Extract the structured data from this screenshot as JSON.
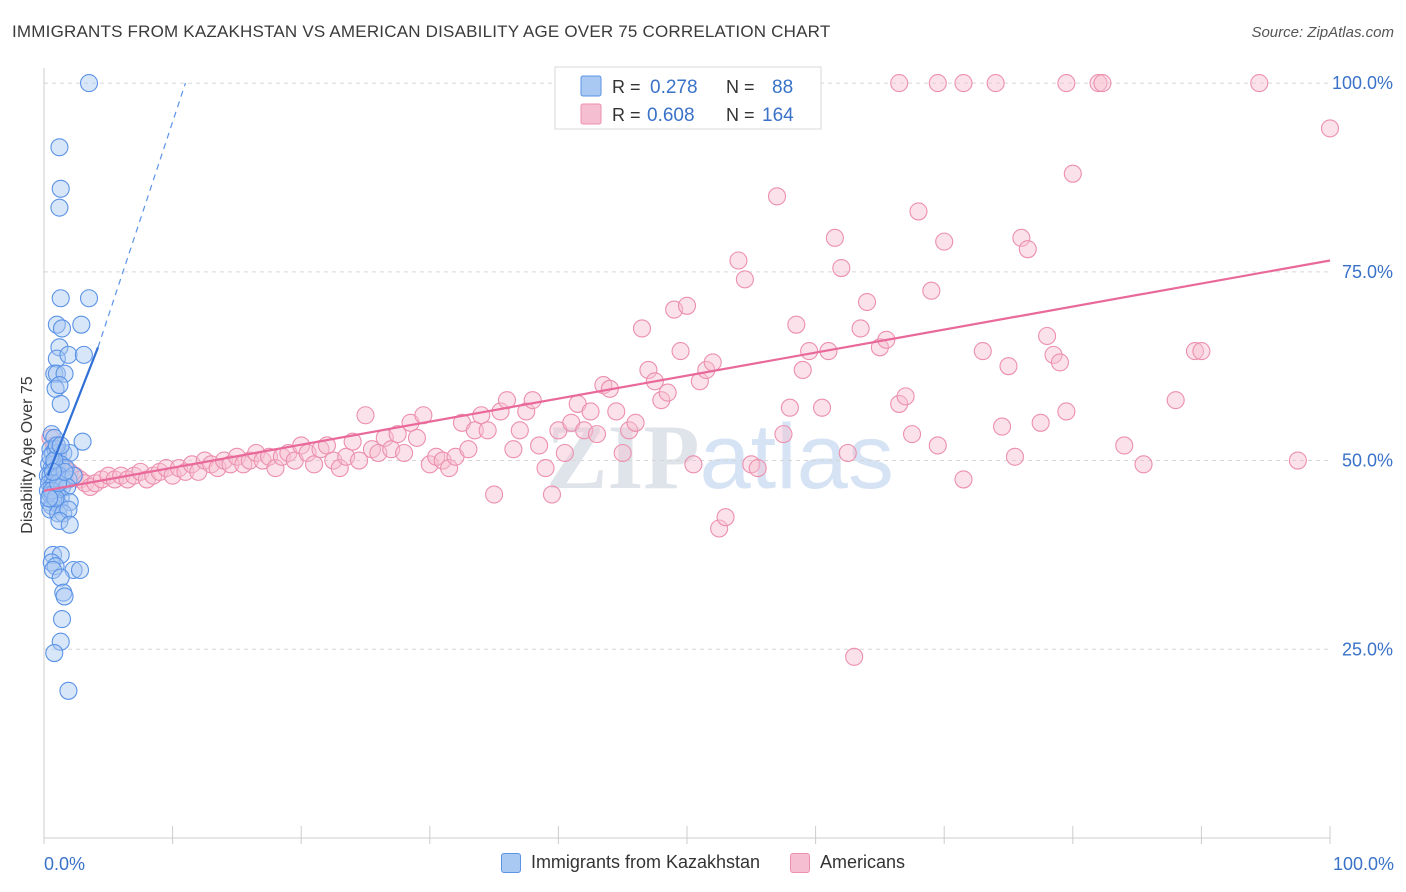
{
  "title": "IMMIGRANTS FROM KAZAKHSTAN VS AMERICAN DISABILITY AGE OVER 75 CORRELATION CHART",
  "source": "Source: ZipAtlas.com",
  "watermark": "ZIPatlas",
  "colors": {
    "blue_fill": "#a9c8f2",
    "blue_stroke": "#5b93e6",
    "blue_line": "#2f6fd6",
    "pink_fill": "#f6bfd1",
    "pink_stroke": "#ec8fae",
    "pink_line": "#e8699a",
    "axis_label": "#3a72c8"
  },
  "chart_data": {
    "type": "scatter",
    "title": "IMMIGRANTS FROM KAZAKHSTAN VS AMERICAN DISABILITY AGE OVER 75 CORRELATION CHART",
    "xlabel": "",
    "ylabel": "Disability Age Over 75",
    "xlim": [
      0,
      100
    ],
    "ylim": [
      0,
      102
    ],
    "x_tick_labels": [
      "0.0%",
      "100.0%"
    ],
    "y_ticks": [
      25,
      50,
      75,
      100
    ],
    "y_tick_labels": [
      "25.0%",
      "50.0%",
      "75.0%",
      "100.0%"
    ],
    "grid": true,
    "legend": {
      "position": "top-center",
      "entries": [
        {
          "series": "Immigrants from Kazakhstan",
          "r_label": "R =",
          "r_value": "0.278",
          "n_label": "N =",
          "n_value": "88"
        },
        {
          "series": "Americans",
          "r_label": "R =",
          "r_value": "0.608",
          "n_label": "N =",
          "n_value": "164"
        }
      ]
    },
    "series": [
      {
        "name": "Immigrants from Kazakhstan",
        "color": "blue",
        "trend": {
          "x": [
            0.3,
            4.2
          ],
          "y": [
            48,
            65
          ]
        },
        "trend_extension": {
          "x": [
            4.2,
            11
          ],
          "y": [
            65,
            100
          ]
        },
        "points": [
          [
            3.5,
            100
          ],
          [
            1.2,
            91.5
          ],
          [
            1.3,
            86
          ],
          [
            1.2,
            83.5
          ],
          [
            1.3,
            71.5
          ],
          [
            3.5,
            71.5
          ],
          [
            1.0,
            68
          ],
          [
            1.4,
            67.5
          ],
          [
            2.9,
            68
          ],
          [
            1.2,
            65
          ],
          [
            1.0,
            63.5
          ],
          [
            1.9,
            64
          ],
          [
            3.1,
            64
          ],
          [
            0.8,
            61.5
          ],
          [
            1.0,
            61.5
          ],
          [
            1.6,
            61.5
          ],
          [
            0.9,
            59.5
          ],
          [
            1.2,
            60
          ],
          [
            1.3,
            57.5
          ],
          [
            0.6,
            53.5
          ],
          [
            0.8,
            53
          ],
          [
            3.0,
            52.5
          ],
          [
            0.5,
            51.5
          ],
          [
            0.7,
            51
          ],
          [
            0.9,
            51.5
          ],
          [
            1.1,
            51
          ],
          [
            1.5,
            51
          ],
          [
            2.0,
            51
          ],
          [
            0.4,
            49.5
          ],
          [
            0.6,
            49
          ],
          [
            0.8,
            49.5
          ],
          [
            1.0,
            49
          ],
          [
            1.3,
            49.5
          ],
          [
            1.7,
            49
          ],
          [
            0.3,
            48
          ],
          [
            0.5,
            48
          ],
          [
            0.7,
            47.5
          ],
          [
            0.9,
            48
          ],
          [
            1.2,
            48
          ],
          [
            1.5,
            47.5
          ],
          [
            1.9,
            47.5
          ],
          [
            2.3,
            48
          ],
          [
            0.4,
            47
          ],
          [
            0.6,
            46.5
          ],
          [
            0.8,
            47
          ],
          [
            1.1,
            46.5
          ],
          [
            1.4,
            46.5
          ],
          [
            1.8,
            46.5
          ],
          [
            0.3,
            46
          ],
          [
            0.5,
            45.5
          ],
          [
            0.7,
            45.5
          ],
          [
            1.0,
            45.5
          ],
          [
            1.3,
            45
          ],
          [
            0.4,
            44.5
          ],
          [
            0.6,
            44
          ],
          [
            0.9,
            44.5
          ],
          [
            1.2,
            44
          ],
          [
            2.0,
            44.5
          ],
          [
            0.5,
            43.5
          ],
          [
            1.1,
            43
          ],
          [
            1.5,
            43
          ],
          [
            1.9,
            43.5
          ],
          [
            1.2,
            42
          ],
          [
            2.0,
            41.5
          ],
          [
            0.7,
            37.5
          ],
          [
            1.3,
            37.5
          ],
          [
            0.6,
            36.5
          ],
          [
            0.9,
            36
          ],
          [
            0.7,
            35.5
          ],
          [
            2.3,
            35.5
          ],
          [
            2.8,
            35.5
          ],
          [
            1.3,
            34.5
          ],
          [
            1.5,
            32.5
          ],
          [
            1.6,
            32
          ],
          [
            1.4,
            29
          ],
          [
            1.3,
            26
          ],
          [
            0.8,
            24.5
          ],
          [
            1.9,
            19.5
          ],
          [
            0.5,
            50.5
          ],
          [
            0.8,
            50
          ],
          [
            1.0,
            52
          ],
          [
            1.3,
            52
          ],
          [
            0.6,
            46
          ],
          [
            0.9,
            45
          ],
          [
            1.1,
            47
          ],
          [
            1.6,
            48.5
          ],
          [
            0.4,
            45
          ],
          [
            0.7,
            48.5
          ]
        ]
      },
      {
        "name": "Americans",
        "color": "pink",
        "trend": {
          "x": [
            0,
            100
          ],
          "y": [
            46,
            76.5
          ]
        },
        "points": [
          [
            0.5,
            53
          ],
          [
            0.8,
            52
          ],
          [
            1.0,
            50.5
          ],
          [
            1.3,
            49.5
          ],
          [
            1.6,
            49
          ],
          [
            2.0,
            48.5
          ],
          [
            2.4,
            48
          ],
          [
            2.8,
            47.5
          ],
          [
            3.2,
            47
          ],
          [
            3.6,
            46.5
          ],
          [
            4.0,
            47
          ],
          [
            4.5,
            47.5
          ],
          [
            5.0,
            48
          ],
          [
            5.5,
            47.5
          ],
          [
            6.0,
            48
          ],
          [
            6.5,
            47.5
          ],
          [
            7.0,
            48
          ],
          [
            7.5,
            48.5
          ],
          [
            8.0,
            47.5
          ],
          [
            8.5,
            48
          ],
          [
            9.0,
            48.5
          ],
          [
            9.5,
            49
          ],
          [
            10.0,
            48
          ],
          [
            10.5,
            49
          ],
          [
            11.0,
            48.5
          ],
          [
            11.5,
            49.5
          ],
          [
            12.0,
            48.5
          ],
          [
            12.5,
            50
          ],
          [
            13.0,
            49.5
          ],
          [
            13.5,
            49
          ],
          [
            14.0,
            50
          ],
          [
            14.5,
            49.5
          ],
          [
            15.0,
            50.5
          ],
          [
            15.5,
            49.5
          ],
          [
            16.0,
            50
          ],
          [
            16.5,
            51
          ],
          [
            17.0,
            50
          ],
          [
            17.5,
            50.5
          ],
          [
            18.0,
            49
          ],
          [
            18.5,
            50.5
          ],
          [
            19.0,
            51
          ],
          [
            19.5,
            50
          ],
          [
            20.0,
            52
          ],
          [
            20.5,
            51
          ],
          [
            21.0,
            49.5
          ],
          [
            21.5,
            51.5
          ],
          [
            22.0,
            52
          ],
          [
            22.5,
            50
          ],
          [
            23.0,
            49
          ],
          [
            23.5,
            50.5
          ],
          [
            24.0,
            52.5
          ],
          [
            24.5,
            50
          ],
          [
            25.0,
            56
          ],
          [
            25.5,
            51.5
          ],
          [
            26.0,
            51
          ],
          [
            26.5,
            53
          ],
          [
            27.0,
            51.5
          ],
          [
            27.5,
            53.5
          ],
          [
            28.0,
            51
          ],
          [
            28.5,
            55
          ],
          [
            29.0,
            53
          ],
          [
            29.5,
            56
          ],
          [
            30.0,
            49.5
          ],
          [
            30.5,
            50.5
          ],
          [
            31.0,
            50
          ],
          [
            31.5,
            49
          ],
          [
            32.0,
            50.5
          ],
          [
            32.5,
            55
          ],
          [
            33.0,
            51.5
          ],
          [
            33.5,
            54
          ],
          [
            34.0,
            56
          ],
          [
            34.5,
            54
          ],
          [
            35.0,
            45.5
          ],
          [
            35.5,
            56.5
          ],
          [
            36.0,
            58
          ],
          [
            36.5,
            51.5
          ],
          [
            37.0,
            54
          ],
          [
            37.5,
            56.5
          ],
          [
            38.0,
            58
          ],
          [
            38.5,
            52
          ],
          [
            39.0,
            49
          ],
          [
            39.5,
            45.5
          ],
          [
            40.0,
            54
          ],
          [
            40.5,
            51
          ],
          [
            41.0,
            55
          ],
          [
            41.5,
            57.5
          ],
          [
            42.0,
            54
          ],
          [
            42.5,
            56.5
          ],
          [
            43.0,
            53.5
          ],
          [
            43.5,
            60
          ],
          [
            44.0,
            59.5
          ],
          [
            44.5,
            56.5
          ],
          [
            45.0,
            51
          ],
          [
            45.5,
            54
          ],
          [
            46.0,
            55
          ],
          [
            46.5,
            67.5
          ],
          [
            47.0,
            62
          ],
          [
            47.5,
            60.5
          ],
          [
            48.0,
            58
          ],
          [
            48.5,
            59
          ],
          [
            49.0,
            70
          ],
          [
            49.5,
            64.5
          ],
          [
            50.0,
            70.5
          ],
          [
            50.5,
            49.5
          ],
          [
            51.0,
            60.5
          ],
          [
            51.5,
            62
          ],
          [
            52.0,
            63
          ],
          [
            52.5,
            41
          ],
          [
            53.0,
            42.5
          ],
          [
            54.0,
            76.5
          ],
          [
            54.5,
            74
          ],
          [
            55.0,
            49.5
          ],
          [
            55.5,
            49
          ],
          [
            57.0,
            85
          ],
          [
            57.5,
            53.5
          ],
          [
            58.0,
            57
          ],
          [
            58.5,
            68
          ],
          [
            59.0,
            62
          ],
          [
            59.5,
            64.5
          ],
          [
            60.5,
            57
          ],
          [
            61.0,
            64.5
          ],
          [
            61.5,
            79.5
          ],
          [
            62.0,
            75.5
          ],
          [
            62.5,
            51
          ],
          [
            63.0,
            24
          ],
          [
            63.5,
            67.5
          ],
          [
            64.0,
            71
          ],
          [
            65.0,
            65
          ],
          [
            65.5,
            66
          ],
          [
            66.5,
            57.5
          ],
          [
            67.0,
            58.5
          ],
          [
            67.5,
            53.5
          ],
          [
            68.0,
            83
          ],
          [
            69.0,
            72.5
          ],
          [
            69.5,
            52
          ],
          [
            70.0,
            79
          ],
          [
            71.5,
            47.5
          ],
          [
            73.0,
            64.5
          ],
          [
            74.5,
            54.5
          ],
          [
            75.0,
            62.5
          ],
          [
            75.5,
            50.5
          ],
          [
            76.0,
            79.5
          ],
          [
            76.5,
            78
          ],
          [
            77.5,
            55
          ],
          [
            78.0,
            66.5
          ],
          [
            78.5,
            64
          ],
          [
            79.0,
            63
          ],
          [
            79.5,
            56.5
          ],
          [
            80.0,
            88
          ],
          [
            84.0,
            52
          ],
          [
            85.5,
            49.5
          ],
          [
            88.0,
            58
          ],
          [
            89.5,
            64.5
          ],
          [
            90.0,
            64.5
          ],
          [
            97.5,
            50
          ],
          [
            100.0,
            94
          ],
          [
            66.5,
            100
          ],
          [
            69.5,
            100
          ],
          [
            71.5,
            100
          ],
          [
            74.0,
            100
          ],
          [
            79.5,
            100
          ],
          [
            82.0,
            100
          ],
          [
            82.3,
            100
          ],
          [
            94.5,
            100
          ]
        ]
      }
    ]
  }
}
